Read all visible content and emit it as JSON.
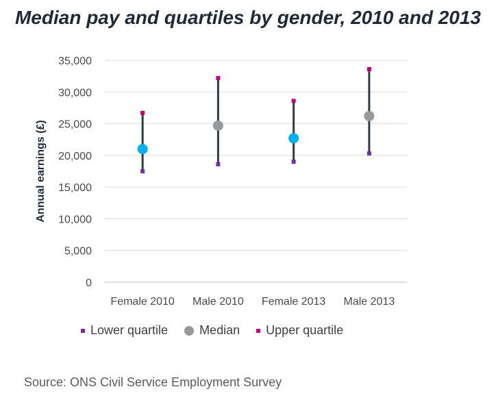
{
  "title": "Median pay and quartiles by gender, 2010 and 2013",
  "source": "Source: ONS Civil Service Employment Survey",
  "colors": {
    "lower": "#7030a0",
    "upper": "#c00078",
    "median_female": "#00b0f0",
    "median_male": "#969a9c",
    "range_line": "#2e3b45",
    "axis": "#bfbfbf",
    "grid": "#d9d9d9"
  },
  "chart_data": {
    "type": "scatter",
    "title": "Median pay and quartiles by gender, 2010 and 2013",
    "ylabel": "Annual earnings (£)",
    "xlabel": "",
    "categories": [
      "Female 2010",
      "Male 2010",
      "Female 2013",
      "Male 2013"
    ],
    "ylim": [
      0,
      35000
    ],
    "yticks": [
      0,
      5000,
      10000,
      15000,
      20000,
      25000,
      30000,
      35000
    ],
    "ytick_labels": [
      "0",
      "5,000",
      "10,000",
      "15,000",
      "20,000",
      "25,000",
      "30,000",
      "35,000"
    ],
    "grid": true,
    "legend_position": "bottom",
    "series": [
      {
        "name": "Lower quartile",
        "values": [
          17500,
          18600,
          19000,
          20300
        ]
      },
      {
        "name": "Median",
        "values": [
          21000,
          24700,
          22700,
          26200
        ]
      },
      {
        "name": "Upper quartile",
        "values": [
          26700,
          32200,
          28600,
          33600
        ]
      }
    ]
  }
}
